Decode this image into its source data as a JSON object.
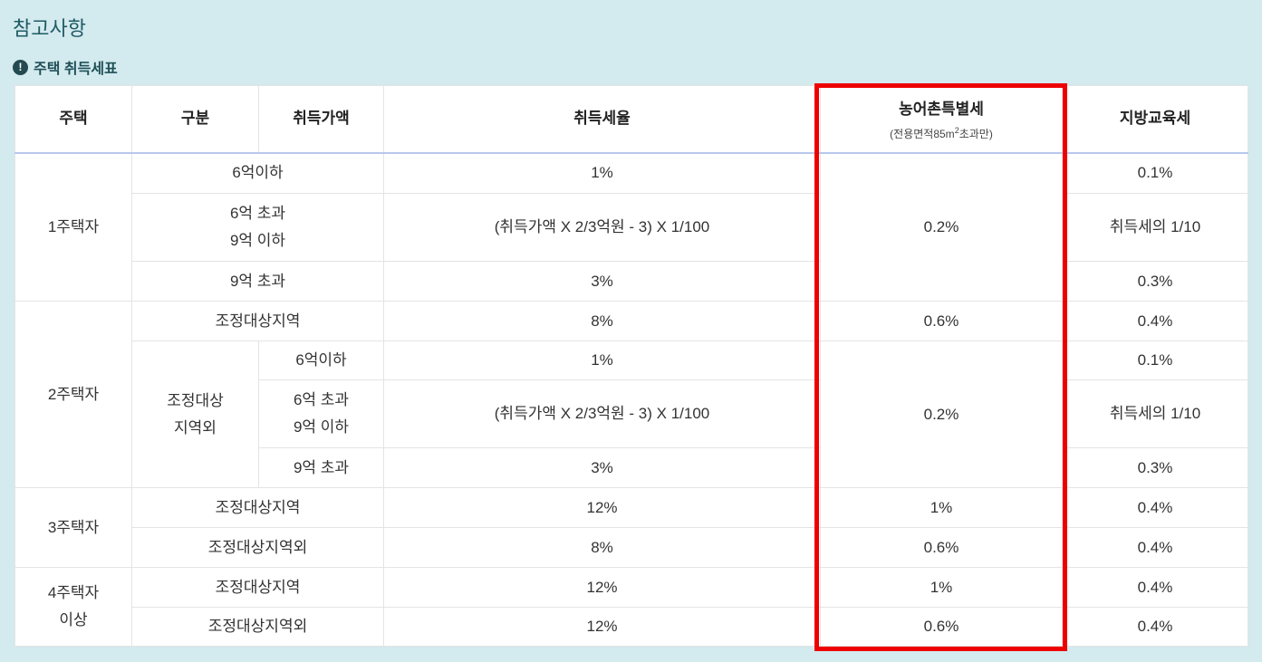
{
  "page_title": "참고사항",
  "section_title": "주택 취득세표",
  "table": {
    "header": [
      "주택",
      "구분",
      "취득가액",
      "취득세율",
      "농어촌특별세",
      "지방교육세"
    ],
    "header_note": {
      "before": "(전용면적85m",
      "sup": "2",
      "after": "초과만)"
    },
    "rows": [
      [
        "1주택자",
        "6억이하",
        "1%",
        "0.2%",
        "0.1%"
      ],
      [
        "6억 초과\n9억 이하",
        "(취득가액 X 2/3억원 - 3) X 1/100",
        "취득세의 1/10"
      ],
      [
        "9억 초과",
        "3%",
        "0.3%"
      ],
      [
        "2주택자",
        "조정대상지역",
        "8%",
        "0.6%",
        "0.4%"
      ],
      [
        "조정대상\n지역외",
        "6억이하",
        "1%",
        "0.2%",
        "0.1%"
      ],
      [
        "6억 초과\n9억 이하",
        "(취득가액 X 2/3억원 - 3) X 1/100",
        "취득세의 1/10"
      ],
      [
        "9억 초과",
        "3%",
        "0.3%"
      ],
      [
        "3주택자",
        "조정대상지역",
        "12%",
        "1%",
        "0.4%"
      ],
      [
        "조정대상지역외",
        "8%",
        "0.6%",
        "0.4%"
      ],
      [
        "4주택자\n이상",
        "조정대상지역",
        "12%",
        "1%",
        "0.4%"
      ],
      [
        "조정대상지역외",
        "12%",
        "0.6%",
        "0.4%"
      ]
    ]
  }
}
